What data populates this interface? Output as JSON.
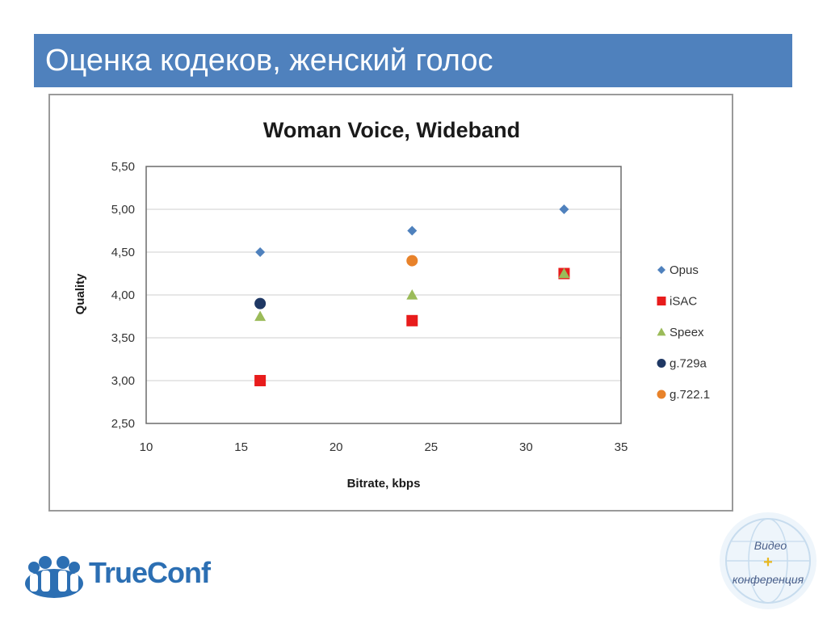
{
  "slide": {
    "title": "Оценка кодеков, женский голос"
  },
  "chart_data": {
    "type": "scatter",
    "title": "Woman Voice, Wideband",
    "xlabel": "Bitrate, kbps",
    "ylabel": "Quality",
    "xlim": [
      10,
      35
    ],
    "ylim": [
      2.5,
      5.5
    ],
    "x_ticks": [
      "10",
      "15",
      "20",
      "25",
      "30",
      "35"
    ],
    "y_ticks": [
      "2,50",
      "3,00",
      "3,50",
      "4,00",
      "4,50",
      "5,00",
      "5,50"
    ],
    "grid": "horizontal",
    "legend_position": "right",
    "series": [
      {
        "name": "Opus",
        "marker": "diamond",
        "color": "#4f81bd",
        "points": [
          {
            "x": 16,
            "y": 4.5
          },
          {
            "x": 24,
            "y": 4.75
          },
          {
            "x": 32,
            "y": 5.0
          }
        ]
      },
      {
        "name": "iSAC",
        "marker": "square",
        "color": "#e81c1c",
        "points": [
          {
            "x": 16,
            "y": 3.0
          },
          {
            "x": 24,
            "y": 3.7
          },
          {
            "x": 32,
            "y": 4.25
          }
        ]
      },
      {
        "name": "Speex",
        "marker": "triangle",
        "color": "#9bbb59",
        "points": [
          {
            "x": 16,
            "y": 3.75
          },
          {
            "x": 24,
            "y": 4.0
          },
          {
            "x": 32,
            "y": 4.25
          }
        ]
      },
      {
        "name": "g.729a",
        "marker": "circle",
        "color": "#1f3864",
        "points": [
          {
            "x": 16,
            "y": 3.9
          }
        ]
      },
      {
        "name": "g.722.1",
        "marker": "circle",
        "color": "#e8822a",
        "points": [
          {
            "x": 24,
            "y": 4.4
          }
        ]
      }
    ]
  },
  "logo": {
    "text": "TrueConf",
    "color": "#2c6fb3"
  },
  "badge": {
    "line1": "Видео",
    "plus": "+",
    "line2": "конференция"
  }
}
